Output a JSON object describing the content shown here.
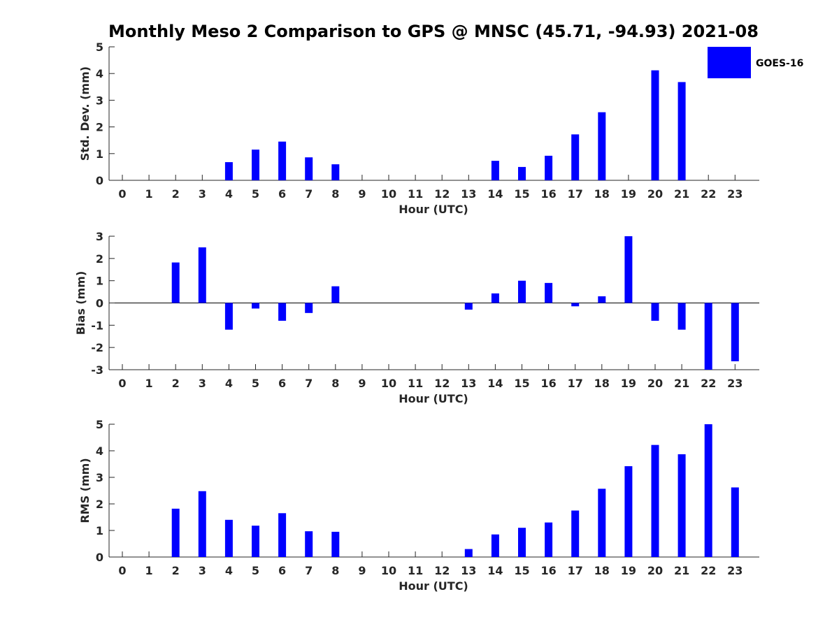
{
  "title": "Monthly Meso 2 Comparison to GPS @ MNSC (45.71, -94.93) 2021-08",
  "legend": {
    "label": "GOES-16",
    "position": "top-right"
  },
  "colors": {
    "bar": "#0000ff",
    "axis": "#262626"
  },
  "chart_data": [
    {
      "type": "bar",
      "title": "Monthly Meso 2 Comparison to GPS @ MNSC (45.71, -94.93) 2021-08",
      "xlabel": "Hour (UTC)",
      "ylabel": "Std. Dev. (mm)",
      "ylim": [
        0,
        5
      ],
      "yticks": [
        0,
        1,
        2,
        3,
        4,
        5
      ],
      "categories": [
        "0",
        "1",
        "2",
        "3",
        "4",
        "5",
        "6",
        "7",
        "8",
        "9",
        "10",
        "11",
        "12",
        "13",
        "14",
        "15",
        "16",
        "17",
        "18",
        "19",
        "20",
        "21",
        "22",
        "23"
      ],
      "series": [
        {
          "name": "GOES-16",
          "values": [
            0,
            0,
            0,
            0,
            0.68,
            1.15,
            1.45,
            0.86,
            0.6,
            0,
            0,
            0,
            0,
            0,
            0.73,
            0.5,
            0.92,
            1.72,
            2.55,
            0,
            4.12,
            3.68,
            0,
            0
          ]
        }
      ]
    },
    {
      "type": "bar",
      "xlabel": "Hour (UTC)",
      "ylabel": "Bias (mm)",
      "ylim": [
        -3,
        3
      ],
      "yticks": [
        -3,
        -2,
        -1,
        0,
        1,
        2,
        3
      ],
      "categories": [
        "0",
        "1",
        "2",
        "3",
        "4",
        "5",
        "6",
        "7",
        "8",
        "9",
        "10",
        "11",
        "12",
        "13",
        "14",
        "15",
        "16",
        "17",
        "18",
        "19",
        "20",
        "21",
        "22",
        "23"
      ],
      "series": [
        {
          "name": "GOES-16",
          "values": [
            0,
            0,
            1.82,
            2.5,
            -1.2,
            -0.25,
            -0.8,
            -0.45,
            0.75,
            0,
            0,
            0,
            0,
            -0.3,
            0.43,
            1.0,
            0.9,
            -0.15,
            0.3,
            3.0,
            -0.8,
            -1.2,
            -3.0,
            -2.62
          ]
        }
      ]
    },
    {
      "type": "bar",
      "xlabel": "Hour (UTC)",
      "ylabel": "RMS (mm)",
      "ylim": [
        0,
        5
      ],
      "yticks": [
        0,
        1,
        2,
        3,
        4,
        5
      ],
      "categories": [
        "0",
        "1",
        "2",
        "3",
        "4",
        "5",
        "6",
        "7",
        "8",
        "9",
        "10",
        "11",
        "12",
        "13",
        "14",
        "15",
        "16",
        "17",
        "18",
        "19",
        "20",
        "21",
        "22",
        "23"
      ],
      "series": [
        {
          "name": "GOES-16",
          "values": [
            0,
            0,
            1.82,
            2.48,
            1.4,
            1.18,
            1.65,
            0.97,
            0.95,
            0,
            0,
            0,
            0,
            0.3,
            0.85,
            1.1,
            1.3,
            1.75,
            2.57,
            3.42,
            4.22,
            3.87,
            5.0,
            2.62
          ]
        }
      ]
    }
  ]
}
